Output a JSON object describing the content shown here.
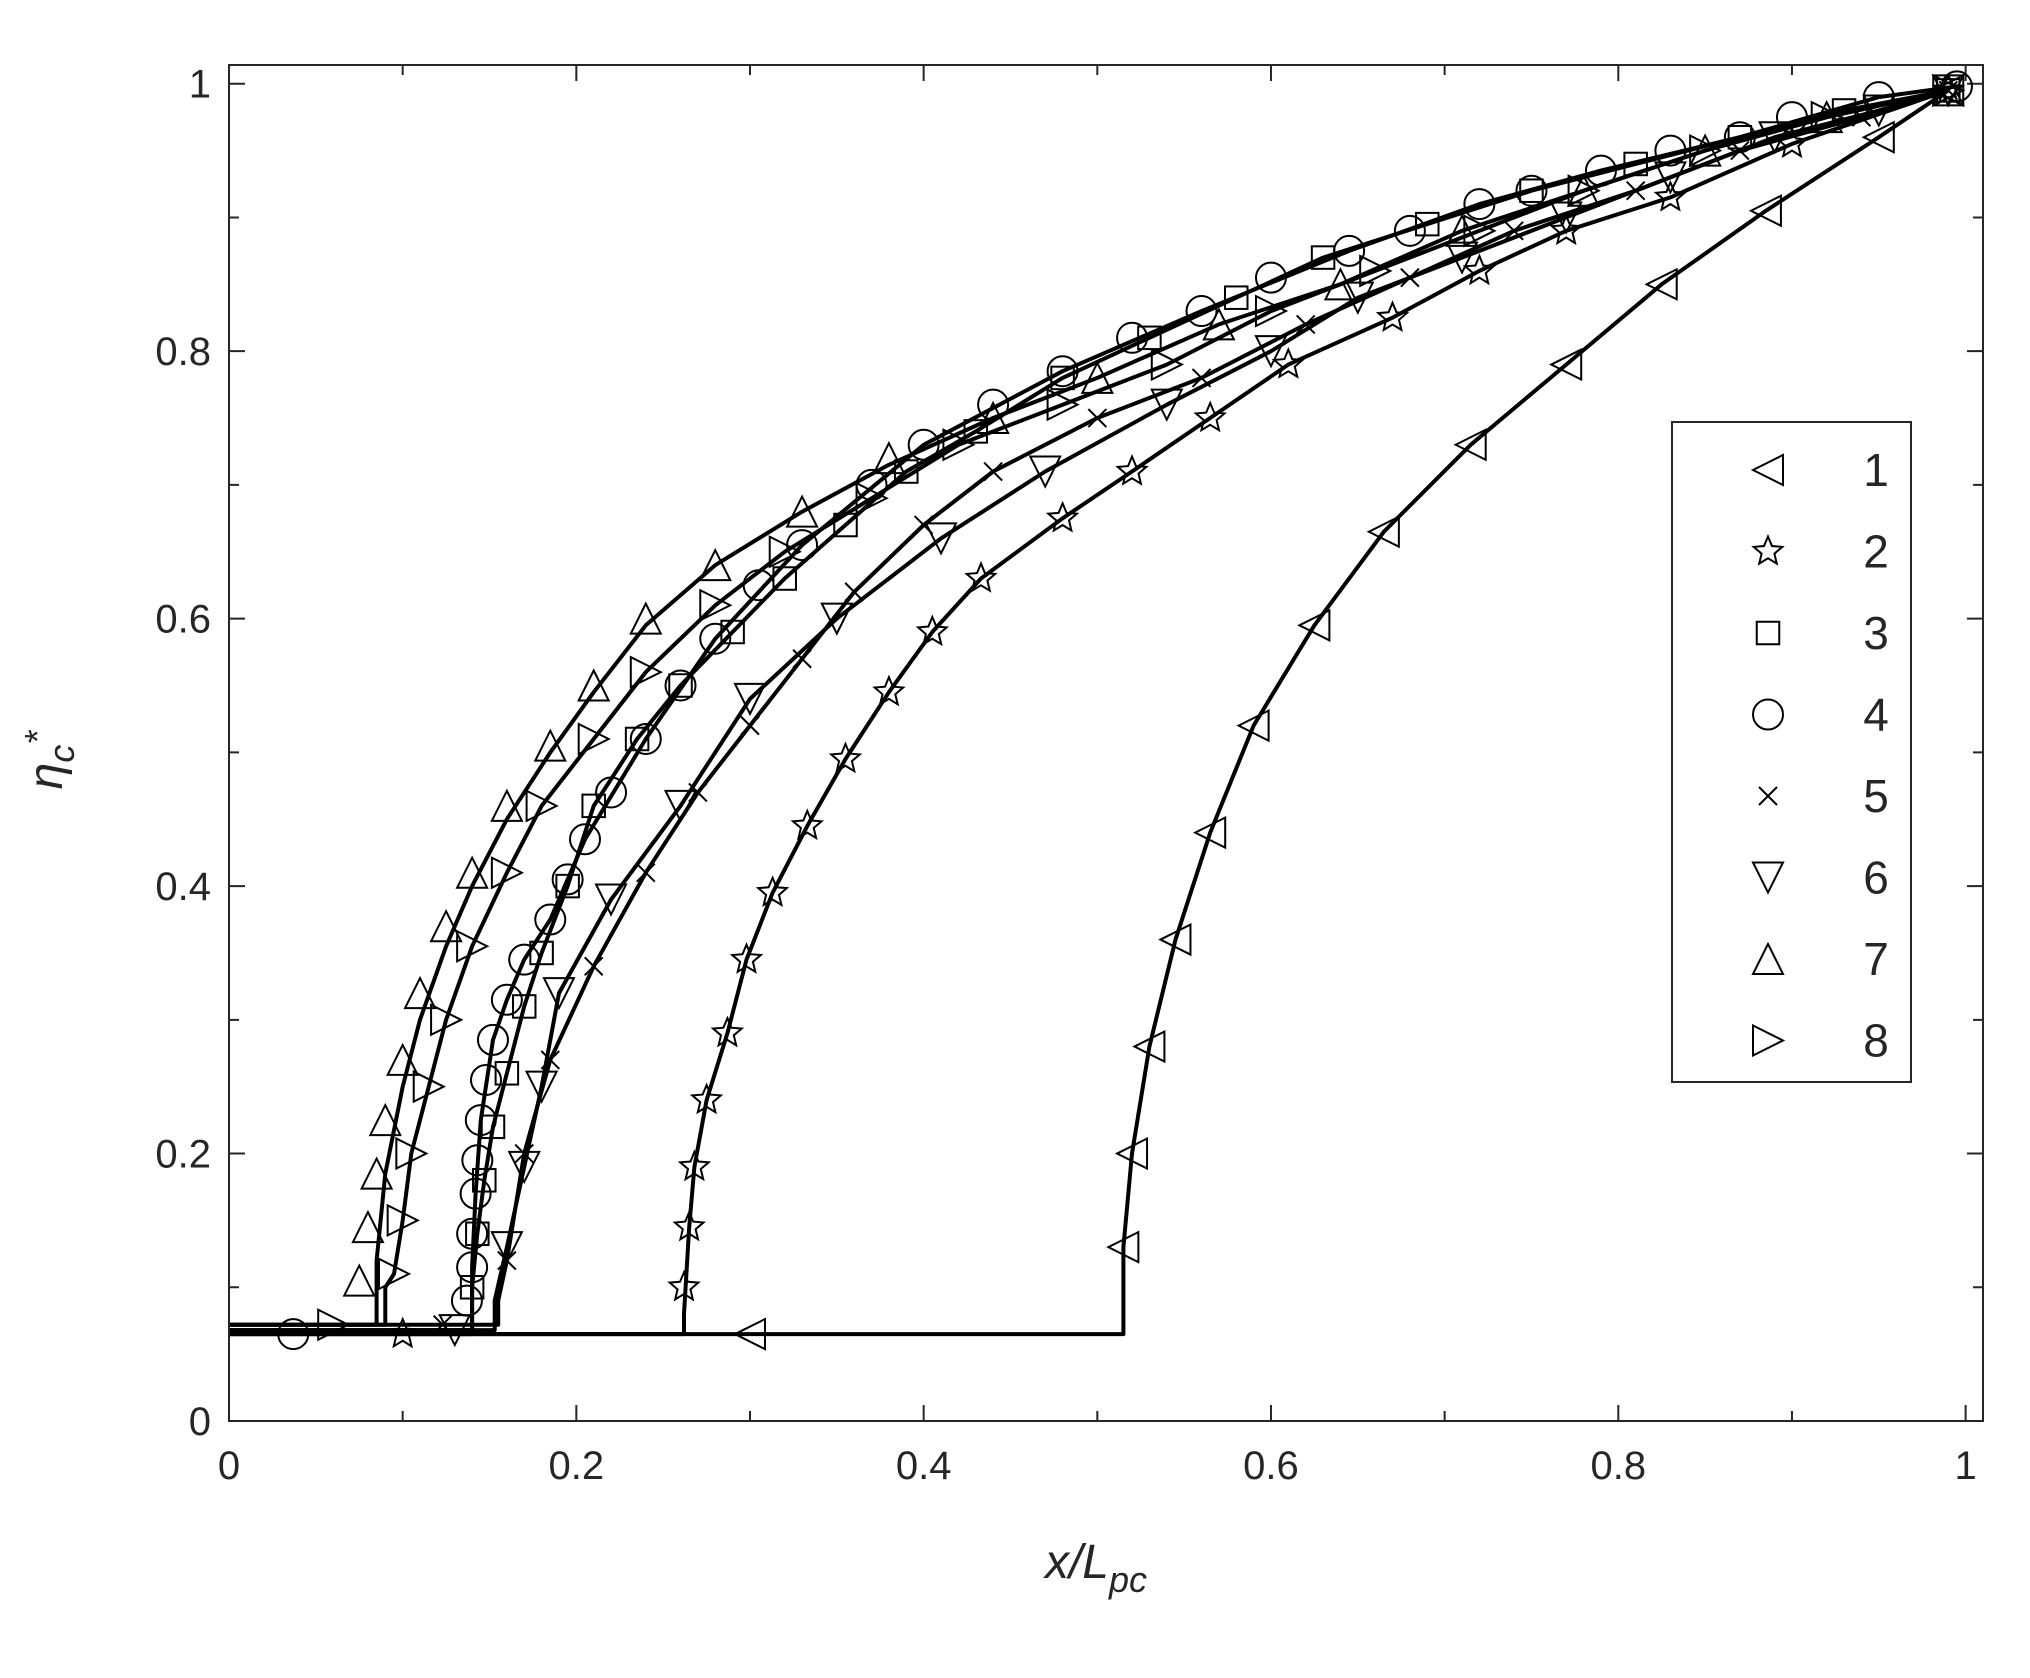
{
  "chart_data": {
    "type": "scatter",
    "x_label": "x/L",
    "x_label_sub": "pc",
    "y_label": "η",
    "y_label_sub": "c",
    "y_label_sup": "*",
    "xlim": [
      0,
      1.01
    ],
    "ylim": [
      0,
      1.014
    ],
    "xticks": [
      0,
      0.2,
      0.4,
      0.6,
      0.8,
      1
    ],
    "yticks": [
      0,
      0.2,
      0.4,
      0.6,
      0.8,
      1
    ],
    "xminorticks": [
      0.1,
      0.3,
      0.5,
      0.7,
      0.9
    ],
    "yminorticks": [
      0.1,
      0.3,
      0.5,
      0.7,
      0.9
    ],
    "legend": "right",
    "color": "#000000",
    "series": [
      {
        "name": "1",
        "marker": "triangle-left",
        "x": [
          0.3,
          0.515,
          0.52,
          0.53,
          0.545,
          0.565,
          0.59,
          0.625,
          0.665,
          0.715,
          0.77,
          0.825,
          0.885,
          0.95,
          0.99
        ],
        "values": [
          0.065,
          0.13,
          0.2,
          0.28,
          0.36,
          0.44,
          0.52,
          0.595,
          0.665,
          0.73,
          0.79,
          0.85,
          0.905,
          0.96,
          0.995
        ],
        "line_x": [
          0,
          0.515,
          0.515,
          0.52,
          0.53,
          0.545,
          0.565,
          0.59,
          0.625,
          0.665,
          0.715,
          0.77,
          0.825,
          0.885,
          0.95,
          0.99
        ],
        "line_values": [
          0.065,
          0.065,
          0.13,
          0.2,
          0.28,
          0.36,
          0.44,
          0.52,
          0.595,
          0.665,
          0.73,
          0.79,
          0.85,
          0.905,
          0.96,
          0.995
        ]
      },
      {
        "name": "2",
        "marker": "star",
        "x": [
          0.1,
          0.262,
          0.265,
          0.268,
          0.275,
          0.287,
          0.298,
          0.313,
          0.333,
          0.355,
          0.38,
          0.405,
          0.433,
          0.48,
          0.52,
          0.565,
          0.61,
          0.67,
          0.72,
          0.77,
          0.83,
          0.9,
          0.99
        ],
        "values": [
          0.065,
          0.1,
          0.145,
          0.19,
          0.24,
          0.29,
          0.345,
          0.395,
          0.445,
          0.495,
          0.545,
          0.59,
          0.63,
          0.675,
          0.71,
          0.75,
          0.79,
          0.825,
          0.86,
          0.89,
          0.915,
          0.955,
          0.995
        ],
        "line_x": [
          0,
          0.262,
          0.262,
          0.265,
          0.268,
          0.275,
          0.287,
          0.298,
          0.313,
          0.333,
          0.355,
          0.38,
          0.405,
          0.433,
          0.48,
          0.52,
          0.565,
          0.61,
          0.67,
          0.72,
          0.77,
          0.83,
          0.9,
          0.99
        ],
        "line_values": [
          0.065,
          0.065,
          0.08,
          0.145,
          0.19,
          0.24,
          0.29,
          0.345,
          0.395,
          0.445,
          0.495,
          0.545,
          0.59,
          0.63,
          0.675,
          0.71,
          0.75,
          0.79,
          0.825,
          0.86,
          0.89,
          0.915,
          0.955,
          0.995
        ]
      },
      {
        "name": "3",
        "marker": "square",
        "x": [
          0.14,
          0.143,
          0.147,
          0.152,
          0.16,
          0.17,
          0.18,
          0.195,
          0.21,
          0.235,
          0.26,
          0.29,
          0.32,
          0.355,
          0.39,
          0.43,
          0.48,
          0.53,
          0.58,
          0.63,
          0.69,
          0.75,
          0.81,
          0.87,
          0.93,
          0.99
        ],
        "values": [
          0.1,
          0.14,
          0.18,
          0.22,
          0.26,
          0.31,
          0.35,
          0.4,
          0.46,
          0.51,
          0.55,
          0.59,
          0.63,
          0.67,
          0.71,
          0.74,
          0.78,
          0.81,
          0.84,
          0.87,
          0.895,
          0.92,
          0.94,
          0.96,
          0.98,
          0.995
        ],
        "line_x": [
          0,
          0.14,
          0.14,
          0.143,
          0.147,
          0.152,
          0.16,
          0.17,
          0.18,
          0.195,
          0.21,
          0.235,
          0.26,
          0.29,
          0.32,
          0.355,
          0.39,
          0.43,
          0.48,
          0.53,
          0.58,
          0.63,
          0.69,
          0.75,
          0.81,
          0.87,
          0.93,
          0.99
        ],
        "line_values": [
          0.068,
          0.068,
          0.1,
          0.14,
          0.18,
          0.22,
          0.26,
          0.31,
          0.35,
          0.4,
          0.46,
          0.51,
          0.55,
          0.59,
          0.63,
          0.67,
          0.71,
          0.74,
          0.78,
          0.81,
          0.84,
          0.87,
          0.895,
          0.92,
          0.94,
          0.96,
          0.98,
          0.995
        ]
      },
      {
        "name": "4",
        "marker": "circle",
        "x": [
          0.037,
          0.137,
          0.14,
          0.14,
          0.142,
          0.143,
          0.145,
          0.148,
          0.152,
          0.16,
          0.17,
          0.185,
          0.195,
          0.205,
          0.22,
          0.24,
          0.26,
          0.28,
          0.305,
          0.33,
          0.37,
          0.4,
          0.44,
          0.48,
          0.52,
          0.56,
          0.6,
          0.645,
          0.68,
          0.72,
          0.75,
          0.79,
          0.83,
          0.87,
          0.9,
          0.95,
          0.995
        ],
        "values": [
          0.065,
          0.09,
          0.115,
          0.14,
          0.17,
          0.195,
          0.225,
          0.255,
          0.285,
          0.315,
          0.345,
          0.375,
          0.405,
          0.435,
          0.47,
          0.51,
          0.55,
          0.585,
          0.625,
          0.655,
          0.7,
          0.73,
          0.76,
          0.785,
          0.81,
          0.83,
          0.855,
          0.875,
          0.89,
          0.91,
          0.92,
          0.935,
          0.95,
          0.96,
          0.975,
          0.99,
          0.998
        ],
        "line_x": [
          0,
          0.14,
          0.14,
          0.142,
          0.145,
          0.152,
          0.16,
          0.17,
          0.185,
          0.205,
          0.24,
          0.28,
          0.33,
          0.4,
          0.48,
          0.56,
          0.645,
          0.72,
          0.79,
          0.87,
          0.95,
          0.995
        ],
        "line_values": [
          0.065,
          0.065,
          0.115,
          0.17,
          0.225,
          0.285,
          0.315,
          0.345,
          0.375,
          0.435,
          0.51,
          0.585,
          0.655,
          0.73,
          0.785,
          0.83,
          0.875,
          0.91,
          0.935,
          0.96,
          0.99,
          0.998
        ]
      },
      {
        "name": "5",
        "marker": "x",
        "x": [
          0.123,
          0.16,
          0.17,
          0.185,
          0.21,
          0.24,
          0.27,
          0.3,
          0.33,
          0.36,
          0.4,
          0.44,
          0.5,
          0.56,
          0.62,
          0.68,
          0.74,
          0.81,
          0.87,
          0.94,
          0.99
        ],
        "values": [
          0.072,
          0.12,
          0.2,
          0.27,
          0.34,
          0.41,
          0.47,
          0.52,
          0.57,
          0.62,
          0.67,
          0.71,
          0.75,
          0.78,
          0.82,
          0.855,
          0.89,
          0.92,
          0.95,
          0.975,
          0.995
        ],
        "line_x": [
          0,
          0.155,
          0.155,
          0.16,
          0.17,
          0.185,
          0.21,
          0.24,
          0.27,
          0.3,
          0.33,
          0.36,
          0.4,
          0.44,
          0.5,
          0.56,
          0.62,
          0.68,
          0.74,
          0.81,
          0.87,
          0.94,
          0.99
        ],
        "line_values": [
          0.072,
          0.072,
          0.09,
          0.12,
          0.2,
          0.27,
          0.34,
          0.41,
          0.47,
          0.52,
          0.57,
          0.62,
          0.67,
          0.71,
          0.75,
          0.78,
          0.82,
          0.855,
          0.89,
          0.92,
          0.95,
          0.975,
          0.995
        ]
      },
      {
        "name": "6",
        "marker": "triangle-down",
        "x": [
          0.13,
          0.16,
          0.17,
          0.18,
          0.19,
          0.22,
          0.26,
          0.3,
          0.35,
          0.41,
          0.47,
          0.54,
          0.6,
          0.65,
          0.71,
          0.77,
          0.83,
          0.89,
          0.95,
          0.99
        ],
        "values": [
          0.068,
          0.13,
          0.19,
          0.25,
          0.32,
          0.39,
          0.46,
          0.54,
          0.6,
          0.66,
          0.71,
          0.76,
          0.8,
          0.84,
          0.87,
          0.9,
          0.93,
          0.96,
          0.98,
          0.995
        ],
        "line_x": [
          0,
          0.153,
          0.153,
          0.16,
          0.17,
          0.18,
          0.19,
          0.22,
          0.26,
          0.3,
          0.35,
          0.41,
          0.47,
          0.54,
          0.6,
          0.65,
          0.71,
          0.77,
          0.83,
          0.89,
          0.95,
          0.99
        ],
        "line_values": [
          0.068,
          0.068,
          0.09,
          0.13,
          0.19,
          0.25,
          0.32,
          0.39,
          0.46,
          0.54,
          0.6,
          0.66,
          0.71,
          0.76,
          0.8,
          0.84,
          0.87,
          0.9,
          0.93,
          0.96,
          0.98,
          0.995
        ]
      },
      {
        "name": "7",
        "marker": "triangle-up",
        "x": [
          0.075,
          0.08,
          0.085,
          0.09,
          0.1,
          0.11,
          0.125,
          0.14,
          0.16,
          0.185,
          0.21,
          0.24,
          0.28,
          0.33,
          0.38,
          0.44,
          0.5,
          0.57,
          0.64,
          0.71,
          0.78,
          0.85,
          0.92,
          0.99
        ],
        "values": [
          0.105,
          0.145,
          0.185,
          0.225,
          0.27,
          0.32,
          0.37,
          0.41,
          0.46,
          0.505,
          0.55,
          0.6,
          0.64,
          0.68,
          0.72,
          0.75,
          0.78,
          0.82,
          0.85,
          0.89,
          0.92,
          0.95,
          0.975,
          0.995
        ],
        "line_x": [
          0,
          0.085,
          0.085,
          0.09,
          0.1,
          0.11,
          0.125,
          0.14,
          0.16,
          0.185,
          0.21,
          0.24,
          0.28,
          0.33,
          0.38,
          0.44,
          0.5,
          0.57,
          0.64,
          0.71,
          0.78,
          0.85,
          0.92,
          0.99
        ],
        "line_values": [
          0.072,
          0.072,
          0.12,
          0.185,
          0.25,
          0.3,
          0.355,
          0.4,
          0.45,
          0.5,
          0.545,
          0.595,
          0.64,
          0.68,
          0.715,
          0.75,
          0.78,
          0.82,
          0.85,
          0.89,
          0.92,
          0.95,
          0.975,
          0.995
        ]
      },
      {
        "name": "8",
        "marker": "triangle-right",
        "x": [
          0.06,
          0.095,
          0.1,
          0.105,
          0.115,
          0.125,
          0.14,
          0.16,
          0.18,
          0.21,
          0.24,
          0.28,
          0.32,
          0.37,
          0.42,
          0.48,
          0.54,
          0.6,
          0.66,
          0.72,
          0.78,
          0.85,
          0.92,
          0.99
        ],
        "values": [
          0.072,
          0.11,
          0.15,
          0.2,
          0.25,
          0.3,
          0.355,
          0.41,
          0.46,
          0.51,
          0.56,
          0.61,
          0.65,
          0.69,
          0.73,
          0.76,
          0.79,
          0.83,
          0.86,
          0.89,
          0.92,
          0.95,
          0.975,
          0.995
        ],
        "line_x": [
          0,
          0.09,
          0.09,
          0.095,
          0.1,
          0.105,
          0.115,
          0.125,
          0.14,
          0.16,
          0.18,
          0.21,
          0.24,
          0.28,
          0.32,
          0.37,
          0.42,
          0.48,
          0.54,
          0.6,
          0.66,
          0.72,
          0.78,
          0.85,
          0.92,
          0.99
        ],
        "line_values": [
          0.072,
          0.072,
          0.1,
          0.11,
          0.15,
          0.2,
          0.25,
          0.3,
          0.355,
          0.41,
          0.46,
          0.51,
          0.56,
          0.61,
          0.65,
          0.69,
          0.73,
          0.76,
          0.79,
          0.83,
          0.86,
          0.89,
          0.92,
          0.95,
          0.975,
          0.995
        ]
      }
    ]
  }
}
